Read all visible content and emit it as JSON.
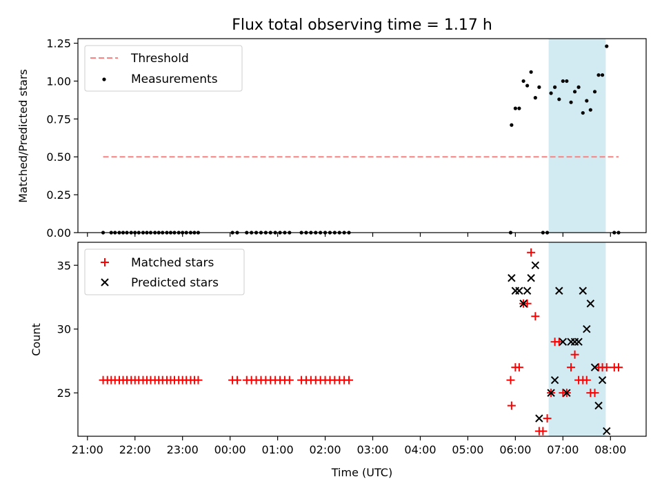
{
  "figure": {
    "title": "Flux total observing time = 1.17 h",
    "xlabel": "Time (UTC)"
  },
  "chart_data": [
    {
      "type": "scatter",
      "panel": "top",
      "ylabel": "Matched/Predicted stars",
      "ylim": [
        0,
        1.28
      ],
      "yticks": [
        0.0,
        0.25,
        0.5,
        0.75,
        1.0,
        1.25
      ],
      "ytick_labels": [
        "0.00",
        "0.25",
        "0.50",
        "0.75",
        "1.00",
        "1.25"
      ],
      "xlim_hours": [
        20.8,
        32.75
      ],
      "highlight_span_hours": [
        30.7,
        31.9
      ],
      "highlight_color": "#add8e6",
      "threshold": {
        "name": "Threshold",
        "value": 0.5,
        "x_range_hours": [
          21.33,
          32.17
        ],
        "color": "#ff7f7f",
        "style": "dashed"
      },
      "series": [
        {
          "name": "Measurements",
          "color": "#000000",
          "marker": "dot",
          "x_hours": [
            21.33,
            21.5,
            21.58,
            21.67,
            21.75,
            21.83,
            21.92,
            22.0,
            22.08,
            22.17,
            22.25,
            22.33,
            22.42,
            22.5,
            22.58,
            22.67,
            22.75,
            22.83,
            22.92,
            23.0,
            23.08,
            23.17,
            23.25,
            23.33,
            24.05,
            24.15,
            24.35,
            24.45,
            24.55,
            24.65,
            24.75,
            24.85,
            24.95,
            25.05,
            25.15,
            25.25,
            25.5,
            25.6,
            25.7,
            25.8,
            25.9,
            26.0,
            26.1,
            26.2,
            26.3,
            26.4,
            26.5,
            29.9,
            29.92,
            30.0,
            30.08,
            30.17,
            30.25,
            30.33,
            30.42,
            30.5,
            30.58,
            30.67,
            30.75,
            30.83,
            30.92,
            31.0,
            31.08,
            31.17,
            31.25,
            31.33,
            31.42,
            31.5,
            31.58,
            31.67,
            31.75,
            31.83,
            31.92,
            32.08,
            32.17
          ],
          "y": [
            0,
            0,
            0,
            0,
            0,
            0,
            0,
            0,
            0,
            0,
            0,
            0,
            0,
            0,
            0,
            0,
            0,
            0,
            0,
            0,
            0,
            0,
            0,
            0,
            0,
            0,
            0,
            0,
            0,
            0,
            0,
            0,
            0,
            0,
            0,
            0,
            0,
            0,
            0,
            0,
            0,
            0,
            0,
            0,
            0,
            0,
            0,
            0,
            0.71,
            0.82,
            0.82,
            1.0,
            0.97,
            1.06,
            0.89,
            0.96,
            0,
            0,
            0.92,
            0.96,
            0.88,
            1.0,
            1.0,
            0.86,
            0.93,
            0.96,
            0.79,
            0.87,
            0.81,
            0.93,
            1.04,
            1.04,
            1.23,
            0,
            0
          ]
        }
      ]
    },
    {
      "type": "scatter",
      "panel": "bottom",
      "ylabel": "Count",
      "ylim": [
        21.6,
        36.8
      ],
      "yticks": [
        25,
        30,
        35
      ],
      "ytick_labels": [
        "25",
        "30",
        "35"
      ],
      "xlim_hours": [
        20.8,
        32.75
      ],
      "xticks_hours": [
        21,
        22,
        23,
        24,
        25,
        26,
        27,
        28,
        29,
        30,
        31,
        32
      ],
      "xtick_labels": [
        "21:00",
        "22:00",
        "23:00",
        "00:00",
        "01:00",
        "02:00",
        "03:00",
        "04:00",
        "05:00",
        "06:00",
        "07:00",
        "08:00"
      ],
      "highlight_span_hours": [
        30.7,
        31.9
      ],
      "highlight_color": "#add8e6",
      "series": [
        {
          "name": "Matched stars",
          "color": "#ff0000",
          "marker": "plus",
          "x_hours": [
            21.33,
            21.42,
            21.5,
            21.58,
            21.67,
            21.75,
            21.83,
            21.92,
            22.0,
            22.08,
            22.17,
            22.25,
            22.33,
            22.42,
            22.5,
            22.58,
            22.67,
            22.75,
            22.83,
            22.92,
            23.0,
            23.08,
            23.17,
            23.25,
            23.33,
            24.05,
            24.15,
            24.35,
            24.45,
            24.55,
            24.65,
            24.75,
            24.85,
            24.95,
            25.05,
            25.15,
            25.25,
            25.5,
            25.6,
            25.7,
            25.8,
            25.9,
            26.0,
            26.1,
            26.2,
            26.3,
            26.4,
            26.5,
            29.9,
            29.92,
            30.0,
            30.08,
            30.17,
            30.25,
            30.33,
            30.42,
            30.5,
            30.58,
            30.67,
            30.75,
            30.83,
            30.92,
            31.0,
            31.08,
            31.17,
            31.25,
            31.33,
            31.42,
            31.5,
            31.58,
            31.67,
            31.75,
            31.83,
            31.92,
            32.08,
            32.17
          ],
          "y": [
            26,
            26,
            26,
            26,
            26,
            26,
            26,
            26,
            26,
            26,
            26,
            26,
            26,
            26,
            26,
            26,
            26,
            26,
            26,
            26,
            26,
            26,
            26,
            26,
            26,
            26,
            26,
            26,
            26,
            26,
            26,
            26,
            26,
            26,
            26,
            26,
            26,
            26,
            26,
            26,
            26,
            26,
            26,
            26,
            26,
            26,
            26,
            26,
            26,
            24,
            27,
            27,
            32,
            32,
            36,
            31,
            22,
            22,
            23,
            25,
            29,
            29,
            25,
            25,
            27,
            28,
            26,
            26,
            26,
            25,
            25,
            27,
            27,
            27,
            27,
            27
          ]
        },
        {
          "name": "Predicted stars",
          "color": "#000000",
          "marker": "x",
          "x_hours": [
            29.92,
            30.0,
            30.08,
            30.17,
            30.25,
            30.33,
            30.42,
            30.5,
            30.75,
            30.83,
            30.92,
            31.0,
            31.08,
            31.17,
            31.25,
            31.33,
            31.42,
            31.5,
            31.58,
            31.67,
            31.75,
            31.83,
            31.92
          ],
          "y": [
            34,
            33,
            33,
            32,
            33,
            34,
            35,
            23,
            25,
            26,
            33,
            29,
            25,
            29,
            29,
            29,
            33,
            30,
            32,
            27,
            24,
            26,
            22
          ]
        }
      ]
    }
  ]
}
